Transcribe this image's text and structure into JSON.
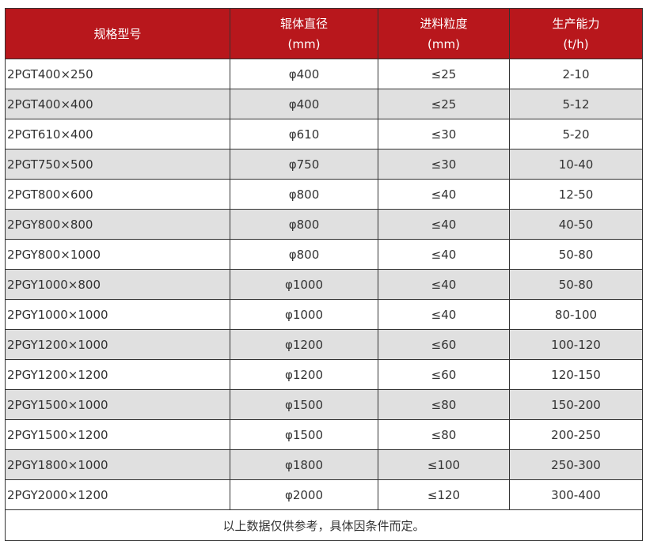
{
  "header_color": "#b8171c",
  "columns": [
    {
      "label": "规格型号",
      "unit": ""
    },
    {
      "label": "辊体直径",
      "unit": "(mm)"
    },
    {
      "label": "进料粒度",
      "unit": "(mm)"
    },
    {
      "label": "生产能力",
      "unit": "(t/h)"
    }
  ],
  "rows": [
    [
      "2PGT400×250",
      "φ400",
      "≤25",
      "2-10"
    ],
    [
      "2PGT400×400",
      "φ400",
      "≤25",
      "5-12"
    ],
    [
      "2PGT610×400",
      "φ610",
      "≤30",
      "5-20"
    ],
    [
      "2PGT750×500",
      "φ750",
      "≤30",
      "10-40"
    ],
    [
      "2PGT800×600",
      "φ800",
      "≤40",
      "12-50"
    ],
    [
      "2PGY800×800",
      "φ800",
      "≤40",
      "40-50"
    ],
    [
      "2PGY800×1000",
      "φ800",
      "≤40",
      "50-80"
    ],
    [
      "2PGY1000×800",
      "φ1000",
      "≤40",
      "50-80"
    ],
    [
      "2PGY1000×1000",
      "φ1000",
      "≤40",
      "80-100"
    ],
    [
      "2PGY1200×1000",
      "φ1200",
      "≤60",
      "100-120"
    ],
    [
      "2PGY1200×1200",
      "φ1200",
      "≤60",
      "120-150"
    ],
    [
      "2PGY1500×1000",
      "φ1500",
      "≤80",
      "150-200"
    ],
    [
      "2PGY1500×1200",
      "φ1500",
      "≤80",
      "200-250"
    ],
    [
      "2PGY1800×1000",
      "φ1800",
      "≤100",
      "250-300"
    ],
    [
      "2PGY2000×1200",
      "φ2000",
      "≤120",
      "300-400"
    ]
  ],
  "footnote": "以上数据仅供参考，具体因条件而定。"
}
